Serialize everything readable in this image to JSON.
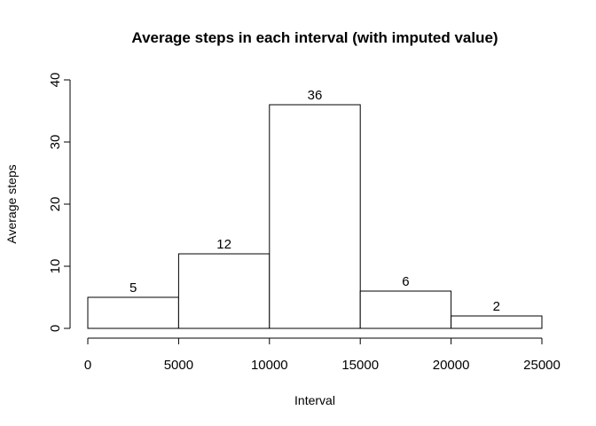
{
  "chart_data": {
    "type": "bar",
    "title": "Average steps in each interval (with imputed value)",
    "xlabel": "Interval",
    "ylabel": "Average steps",
    "bins": [
      {
        "x0": 0,
        "x1": 5000,
        "value": 5
      },
      {
        "x0": 5000,
        "x1": 10000,
        "value": 12
      },
      {
        "x0": 10000,
        "x1": 15000,
        "value": 36
      },
      {
        "x0": 15000,
        "x1": 20000,
        "value": 6
      },
      {
        "x0": 20000,
        "x1": 25000,
        "value": 2
      }
    ],
    "data_labels": [
      "5",
      "12",
      "36",
      "6",
      "2"
    ],
    "xlim": [
      0,
      25000
    ],
    "ylim": [
      0,
      40
    ],
    "x_ticks": [
      0,
      5000,
      10000,
      15000,
      20000,
      25000
    ],
    "x_tick_labels": [
      "0",
      "5000",
      "10000",
      "15000",
      "20000",
      "25000"
    ],
    "y_ticks": [
      0,
      10,
      20,
      30,
      40
    ],
    "y_tick_labels": [
      "0",
      "10",
      "20",
      "30",
      "40"
    ],
    "grid": false,
    "bar_fill": "#ffffff",
    "bar_stroke": "#000000"
  }
}
